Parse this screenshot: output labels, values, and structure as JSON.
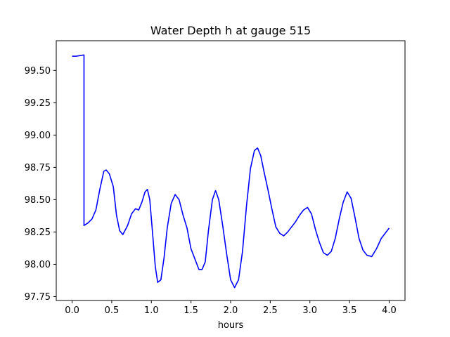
{
  "chart_data": {
    "type": "line",
    "title": "Water Depth h at gauge 515",
    "xlabel": "hours",
    "ylabel": "",
    "xlim": [
      -0.2,
      4.2
    ],
    "ylim": [
      97.72,
      99.73
    ],
    "xticks": [
      0.0,
      0.5,
      1.0,
      1.5,
      2.0,
      2.5,
      3.0,
      3.5,
      4.0
    ],
    "xtick_labels": [
      "0.0",
      "0.5",
      "1.0",
      "1.5",
      "2.0",
      "2.5",
      "3.0",
      "3.5",
      "4.0"
    ],
    "yticks": [
      97.75,
      98.0,
      98.25,
      98.5,
      98.75,
      99.0,
      99.25,
      99.5
    ],
    "ytick_labels": [
      "97.75",
      "98.00",
      "98.25",
      "98.50",
      "98.75",
      "99.00",
      "99.25",
      "99.50"
    ],
    "grid": false,
    "legend": "none",
    "series": [
      {
        "color": "#0000ff",
        "x": [
          0.0,
          0.05,
          0.1,
          0.15,
          0.15,
          0.2,
          0.25,
          0.3,
          0.35,
          0.4,
          0.43,
          0.47,
          0.52,
          0.56,
          0.6,
          0.64,
          0.7,
          0.75,
          0.8,
          0.84,
          0.88,
          0.92,
          0.95,
          0.98,
          1.01,
          1.05,
          1.08,
          1.12,
          1.16,
          1.2,
          1.25,
          1.3,
          1.35,
          1.4,
          1.45,
          1.5,
          1.55,
          1.6,
          1.64,
          1.68,
          1.72,
          1.77,
          1.81,
          1.85,
          1.9,
          1.95,
          2.0,
          2.05,
          2.1,
          2.15,
          2.2,
          2.25,
          2.3,
          2.34,
          2.38,
          2.42,
          2.47,
          2.52,
          2.57,
          2.62,
          2.67,
          2.72,
          2.77,
          2.82,
          2.87,
          2.92,
          2.97,
          3.02,
          3.07,
          3.12,
          3.17,
          3.22,
          3.27,
          3.32,
          3.37,
          3.42,
          3.47,
          3.52,
          3.57,
          3.62,
          3.67,
          3.72,
          3.78,
          3.84,
          3.9,
          3.95,
          4.0
        ],
        "y": [
          99.61,
          99.61,
          99.615,
          99.62,
          98.3,
          98.32,
          98.35,
          98.42,
          98.58,
          98.72,
          98.73,
          98.7,
          98.6,
          98.38,
          98.26,
          98.23,
          98.3,
          98.39,
          98.43,
          98.42,
          98.48,
          98.56,
          98.58,
          98.5,
          98.28,
          97.98,
          97.86,
          97.88,
          98.05,
          98.28,
          98.47,
          98.54,
          98.5,
          98.38,
          98.28,
          98.12,
          98.04,
          97.96,
          97.96,
          98.02,
          98.26,
          98.5,
          98.57,
          98.5,
          98.3,
          98.08,
          97.88,
          97.82,
          97.88,
          98.1,
          98.45,
          98.74,
          98.88,
          98.9,
          98.84,
          98.72,
          98.58,
          98.43,
          98.29,
          98.24,
          98.22,
          98.25,
          98.29,
          98.33,
          98.38,
          98.42,
          98.44,
          98.39,
          98.27,
          98.17,
          98.09,
          98.07,
          98.1,
          98.2,
          98.35,
          98.48,
          98.56,
          98.51,
          98.36,
          98.2,
          98.11,
          98.07,
          98.06,
          98.12,
          98.2,
          98.24,
          98.28
        ]
      }
    ]
  }
}
